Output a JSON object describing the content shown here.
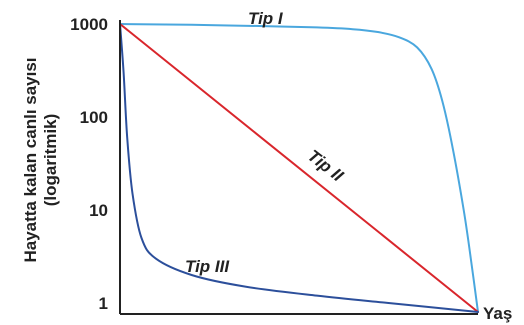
{
  "chart_data": {
    "type": "line",
    "title": "",
    "ylabel_lines": [
      "Hayatta kalan canlı sayısı",
      "(logaritmik)"
    ],
    "xlabel": "Yaş",
    "y_scale": "log",
    "y_ticks": [
      {
        "value": 1,
        "label": "1"
      },
      {
        "value": 10,
        "label": "10"
      },
      {
        "value": 100,
        "label": "100"
      },
      {
        "value": 1000,
        "label": "1000"
      }
    ],
    "x_range": [
      0,
      1
    ],
    "grid": false,
    "series": [
      {
        "name": "Tip I",
        "color": "#4aa7de",
        "points": [
          [
            0,
            1000
          ],
          [
            0.2,
            980
          ],
          [
            0.4,
            950
          ],
          [
            0.55,
            920
          ],
          [
            0.65,
            880
          ],
          [
            0.72,
            820
          ],
          [
            0.78,
            720
          ],
          [
            0.83,
            560
          ],
          [
            0.87,
            330
          ],
          [
            0.9,
            150
          ],
          [
            0.93,
            45
          ],
          [
            0.96,
            10
          ],
          [
            0.98,
            3
          ],
          [
            1.0,
            0.8
          ]
        ]
      },
      {
        "name": "Tip II",
        "color": "#d9262c",
        "points": [
          [
            0,
            1000
          ],
          [
            1.0,
            0.8
          ]
        ]
      },
      {
        "name": "Tip III",
        "color": "#2c4f9b",
        "points": [
          [
            0,
            1000
          ],
          [
            0.01,
            300
          ],
          [
            0.02,
            60
          ],
          [
            0.035,
            15
          ],
          [
            0.06,
            5
          ],
          [
            0.1,
            3
          ],
          [
            0.2,
            2
          ],
          [
            0.35,
            1.5
          ],
          [
            0.55,
            1.2
          ],
          [
            0.75,
            1.0
          ],
          [
            1.0,
            0.8
          ]
        ]
      }
    ]
  }
}
